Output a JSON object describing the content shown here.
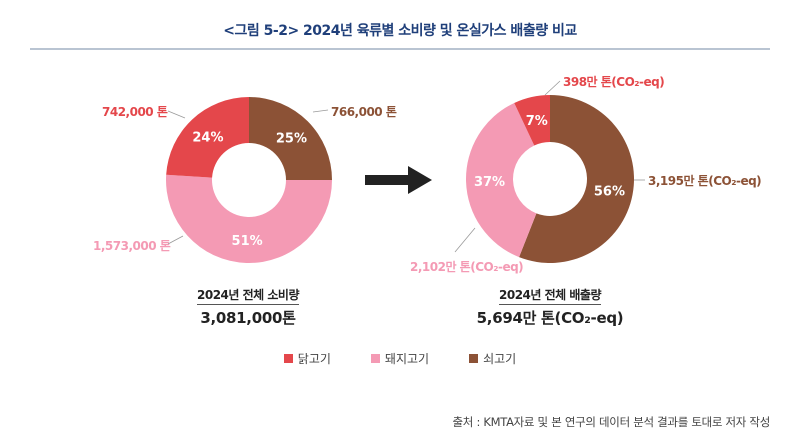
{
  "title": "<그림 5-2> 2024년 육류별 소비량 및 온실가스 배출량 비교",
  "colors": {
    "chicken": "#e4474b",
    "pork": "#f49ab4",
    "beef": "#8c5236",
    "title": "#1f3f7a"
  },
  "chart_data": [
    {
      "type": "pie",
      "donut": true,
      "categories": [
        "쇠고기",
        "돼지고기",
        "닭고기"
      ],
      "percent_labels": [
        "25%",
        "51%",
        "24%"
      ],
      "values": [
        25,
        51,
        24
      ],
      "value_labels": [
        "766,000 톤",
        "1,573,000 톤",
        "742,000 톤"
      ],
      "caption": "2024년 전체 소비량",
      "total": "3,081,000톤"
    },
    {
      "type": "pie",
      "donut": true,
      "categories": [
        "쇠고기",
        "돼지고기",
        "닭고기"
      ],
      "percent_labels": [
        "56%",
        "37%",
        "7%"
      ],
      "values": [
        56,
        37,
        7
      ],
      "value_labels": [
        "3,195만 톤(CO₂-eq)",
        "2,102만 톤(CO₂-eq)",
        "398만 톤(CO₂-eq)"
      ],
      "caption": "2024년 전체 배출량",
      "total": "5,694만 톤(CO₂-eq)"
    }
  ],
  "legend": [
    "닭고기",
    "돼지고기",
    "쇠고기"
  ],
  "source": "출처 : KMTA자료 및 본 연구의 데이터 분석 결과를 토대로 저자 작성"
}
